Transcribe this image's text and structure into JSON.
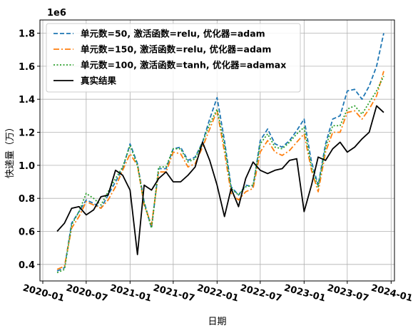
{
  "chart_data": {
    "type": "line",
    "xlabel": "日期",
    "ylabel": "快递量（万）",
    "y_offset_label": "1e6",
    "xlim": [
      "2019-12-20",
      "2024-01-15"
    ],
    "ylim": [
      300000,
      1880000
    ],
    "grid": true,
    "legend_position": "top-left",
    "x_ticks": [
      "2020-01",
      "2020-07",
      "2021-01",
      "2021-07",
      "2022-01",
      "2022-07",
      "2023-01",
      "2023-07",
      "2024-01"
    ],
    "y_ticks": [
      0.4,
      0.6,
      0.8,
      1.0,
      1.2,
      1.4,
      1.6,
      1.8
    ],
    "x": [
      "2020-03",
      "2020-04",
      "2020-05",
      "2020-06",
      "2020-07",
      "2020-08",
      "2020-09",
      "2020-10",
      "2020-11",
      "2020-12",
      "2021-01",
      "2021-02",
      "2021-03",
      "2021-04",
      "2021-05",
      "2021-06",
      "2021-07",
      "2021-08",
      "2021-09",
      "2021-10",
      "2021-11",
      "2021-12",
      "2022-01",
      "2022-02",
      "2022-03",
      "2022-04",
      "2022-05",
      "2022-06",
      "2022-07",
      "2022-08",
      "2022-09",
      "2022-10",
      "2022-11",
      "2022-12",
      "2023-01",
      "2023-02",
      "2023-03",
      "2023-04",
      "2023-05",
      "2023-06",
      "2023-07",
      "2023-08",
      "2023-09",
      "2023-10",
      "2023-11",
      "2023-12"
    ],
    "series": [
      {
        "name": "单元数=50, 激活函数=relu, 优化器=adam",
        "color": "#1f77b4",
        "style": "dashed",
        "values": [
          360000,
          380000,
          650000,
          720000,
          790000,
          770000,
          740000,
          820000,
          900000,
          980000,
          1130000,
          1010000,
          780000,
          620000,
          980000,
          980000,
          1100000,
          1110000,
          1030000,
          1050000,
          1140000,
          1280000,
          1410000,
          1150000,
          870000,
          820000,
          880000,
          870000,
          1150000,
          1220000,
          1130000,
          1110000,
          1150000,
          1210000,
          1280000,
          1020000,
          880000,
          1130000,
          1280000,
          1300000,
          1450000,
          1460000,
          1400000,
          1480000,
          1600000,
          1800000
        ]
      },
      {
        "name": "单元数=150, 激活函数=relu, 优化器=adam",
        "color": "#ff7f0e",
        "style": "dashdot",
        "values": [
          370000,
          390000,
          620000,
          690000,
          780000,
          760000,
          740000,
          790000,
          870000,
          970000,
          1070000,
          1000000,
          760000,
          640000,
          960000,
          960000,
          1080000,
          1070000,
          990000,
          1010000,
          1110000,
          1220000,
          1330000,
          1080000,
          830000,
          790000,
          840000,
          860000,
          1080000,
          1150000,
          1080000,
          1060000,
          1090000,
          1140000,
          1190000,
          970000,
          840000,
          1080000,
          1200000,
          1200000,
          1320000,
          1330000,
          1280000,
          1340000,
          1420000,
          1570000
        ]
      },
      {
        "name": "单元数=100, 激活函数=tanh, 优化器=adamax",
        "color": "#2ca02c",
        "style": "dotted",
        "values": [
          350000,
          370000,
          640000,
          720000,
          830000,
          800000,
          760000,
          840000,
          920000,
          990000,
          1120000,
          1000000,
          770000,
          620000,
          990000,
          990000,
          1100000,
          1100000,
          1020000,
          1040000,
          1140000,
          1250000,
          1340000,
          1120000,
          860000,
          820000,
          870000,
          880000,
          1130000,
          1190000,
          1110000,
          1100000,
          1140000,
          1190000,
          1230000,
          990000,
          870000,
          1110000,
          1240000,
          1240000,
          1340000,
          1360000,
          1310000,
          1380000,
          1450000,
          1540000
        ]
      },
      {
        "name": "真实结果",
        "color": "#000000",
        "style": "solid",
        "values": [
          600000,
          650000,
          740000,
          750000,
          700000,
          730000,
          810000,
          820000,
          970000,
          940000,
          850000,
          460000,
          880000,
          850000,
          920000,
          960000,
          900000,
          900000,
          940000,
          990000,
          1140000,
          1030000,
          880000,
          690000,
          860000,
          750000,
          920000,
          1020000,
          970000,
          950000,
          970000,
          980000,
          1030000,
          1040000,
          720000,
          880000,
          1050000,
          1030000,
          1100000,
          1140000,
          1080000,
          1110000,
          1160000,
          1200000,
          1360000,
          1320000
        ]
      }
    ]
  }
}
